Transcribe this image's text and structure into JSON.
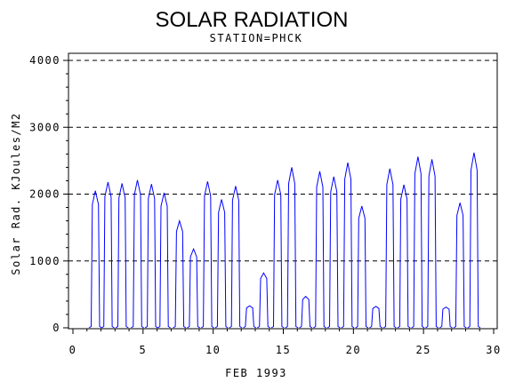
{
  "chart_data": {
    "type": "line",
    "title": "SOLAR RADIATION",
    "subtitle": "STATION=PHCK",
    "xlabel": "FEB 1993",
    "ylabel": "Solar Rad. KJoules/M2",
    "xlim": [
      0,
      30
    ],
    "ylim": [
      0,
      4000
    ],
    "x_ticks": [
      0,
      5,
      10,
      15,
      20,
      25,
      30
    ],
    "y_ticks": [
      0,
      1000,
      2000,
      3000,
      4000
    ],
    "y_tick_labels": [
      "0",
      "1000",
      "2000",
      "3000",
      "4000"
    ],
    "grid": "horizontal dashed at 1000, 2000, 3000, 4000",
    "series_color": "#0000ff",
    "series": [
      {
        "daily_peaks": [
          {
            "day": 1,
            "x": 1.6,
            "peak": 2050
          },
          {
            "day": 2,
            "x": 2.5,
            "peak": 2180
          },
          {
            "day": 3,
            "x": 3.5,
            "peak": 2160
          },
          {
            "day": 4,
            "x": 4.6,
            "peak": 2210
          },
          {
            "day": 5,
            "x": 5.6,
            "peak": 2150
          },
          {
            "day": 6,
            "x": 6.5,
            "peak": 2020
          },
          {
            "day": 7,
            "x": 7.6,
            "peak": 1600
          },
          {
            "day": 8,
            "x": 8.6,
            "peak": 1180
          },
          {
            "day": 9,
            "x": 9.6,
            "peak": 2190
          },
          {
            "day": 10,
            "x": 10.6,
            "peak": 1920
          },
          {
            "day": 11,
            "x": 11.6,
            "peak": 2120
          },
          {
            "day": 12,
            "x": 12.6,
            "peak": 330
          },
          {
            "day": 13,
            "x": 13.6,
            "peak": 820
          },
          {
            "day": 14,
            "x": 14.6,
            "peak": 2210
          },
          {
            "day": 15,
            "x": 15.6,
            "peak": 2400
          },
          {
            "day": 16,
            "x": 16.6,
            "peak": 470
          },
          {
            "day": 17,
            "x": 17.6,
            "peak": 2340
          },
          {
            "day": 18,
            "x": 18.6,
            "peak": 2260
          },
          {
            "day": 19,
            "x": 19.6,
            "peak": 2470
          },
          {
            "day": 20,
            "x": 20.6,
            "peak": 1820
          },
          {
            "day": 21,
            "x": 21.6,
            "peak": 320
          },
          {
            "day": 22,
            "x": 22.6,
            "peak": 2380
          },
          {
            "day": 23,
            "x": 23.6,
            "peak": 2140
          },
          {
            "day": 24,
            "x": 24.6,
            "peak": 2560
          },
          {
            "day": 25,
            "x": 25.6,
            "peak": 2520
          },
          {
            "day": 26,
            "x": 26.6,
            "peak": 310
          },
          {
            "day": 27,
            "x": 27.6,
            "peak": 1870
          },
          {
            "day": 28,
            "x": 28.6,
            "peak": 2620
          }
        ]
      }
    ]
  }
}
